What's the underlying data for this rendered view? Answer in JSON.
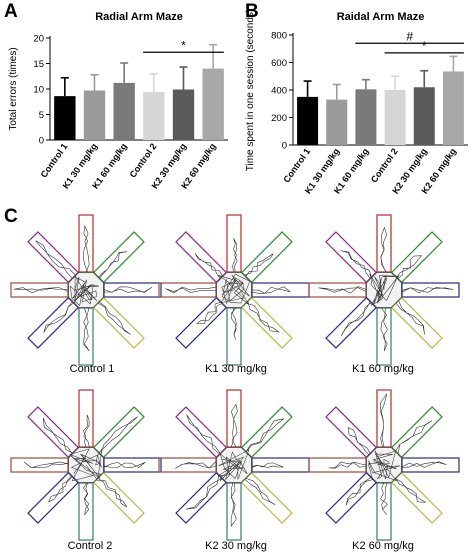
{
  "panels": {
    "a": "A",
    "b": "B",
    "c": "C"
  },
  "chart_data": [
    {
      "type": "bar",
      "title": "Radial Arm Maze",
      "ylabel": "Total errors (times)",
      "xlabel": "",
      "ylim": [
        0,
        20
      ],
      "yticks": [
        0,
        5,
        10,
        15,
        20
      ],
      "categories": [
        "Control 1",
        "K1 30 mg/kg",
        "K1 60 mg/kg",
        "Control 2",
        "K2 30 mg/kg",
        "K2 60 mg/kg"
      ],
      "values": [
        8.6,
        9.7,
        11.2,
        9.4,
        9.9,
        14.0
      ],
      "errors": [
        3.6,
        3.1,
        3.9,
        3.6,
        4.4,
        4.7
      ],
      "colors": [
        "#000000",
        "#9a9a9a",
        "#7a7a7a",
        "#d6d6d6",
        "#5a5a5a",
        "#a8a8a8"
      ],
      "significance": [
        {
          "from": 3,
          "to": 5,
          "label": "*",
          "y": 17.2
        }
      ],
      "grid": false
    },
    {
      "type": "bar",
      "title": "Raidal Arm Maze",
      "ylabel": "Time spent in one session (seconds)",
      "xlabel": "",
      "ylim": [
        0,
        800
      ],
      "yticks": [
        0,
        200,
        400,
        600,
        800
      ],
      "categories": [
        "Control 1",
        "K1 30 mg/kg",
        "K1 60 mg/kg",
        "Control 2",
        "K2 30 mg/kg",
        "K2 60 mg/kg"
      ],
      "values": [
        350,
        330,
        405,
        400,
        420,
        535
      ],
      "errors": [
        115,
        110,
        70,
        100,
        120,
        110
      ],
      "colors": [
        "#000000",
        "#9a9a9a",
        "#7a7a7a",
        "#d6d6d6",
        "#5a5a5a",
        "#a8a8a8"
      ],
      "significance": [
        {
          "from": 2,
          "to": 5,
          "label": "#",
          "y": 740
        },
        {
          "from": 3,
          "to": 5,
          "label": "*",
          "y": 670
        }
      ],
      "grid": false
    }
  ],
  "mazes": [
    {
      "label": "Control 1"
    },
    {
      "label": "K1 30 mg/kg"
    },
    {
      "label": "K1 60 mg/kg"
    },
    {
      "label": "Control 2"
    },
    {
      "label": "K2 30 mg/kg"
    },
    {
      "label": "K2 60 mg/kg"
    }
  ],
  "arm_colors": [
    "#b52a2a",
    "#2e8a2e",
    "#2a2a7a",
    "#b8b84a",
    "#3a7a6a",
    "#2a2a8a",
    "#a04a3a",
    "#8a2a8a"
  ]
}
